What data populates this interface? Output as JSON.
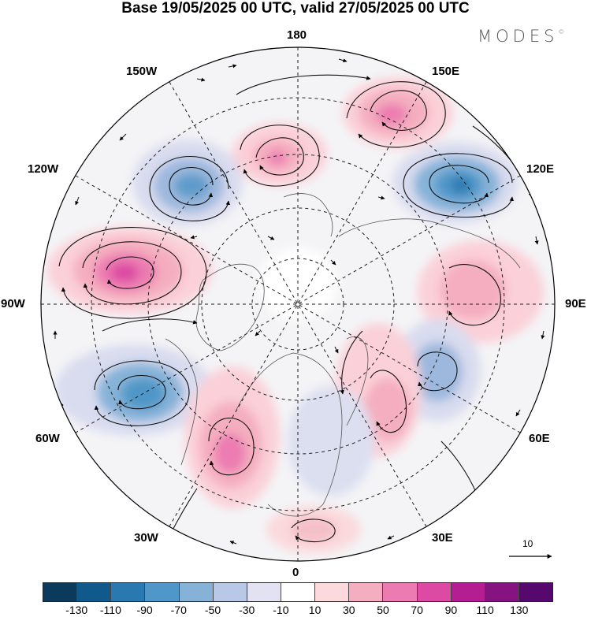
{
  "title": "Base 19/05/2025 00 UTC, valid 27/05/2025 00 UTC",
  "brand": "MODES",
  "brand_mark": "©",
  "longitude_labels": {
    "top": "180",
    "lon_150e": "150E",
    "lon_120e": "120E",
    "lon_90e": "90E",
    "lon_60e": "60E",
    "lon_30e": "30E",
    "bottom": "0",
    "lon_30w": "30W",
    "lon_60w": "60W",
    "lon_90w": "90W",
    "lon_120w": "120W",
    "lon_150w": "150W"
  },
  "reference_vector_label": "10",
  "colorbar": {
    "tick_labels": [
      "-130",
      "-110",
      "-90",
      "-70",
      "-50",
      "-30",
      "-10",
      "10",
      "30",
      "50",
      "70",
      "90",
      "110",
      "130"
    ],
    "colors": [
      "#0b3a5c",
      "#0f5a8a",
      "#2a78b0",
      "#4f97c8",
      "#86b2d8",
      "#b9c8e6",
      "#e2e2f2",
      "#ffffff",
      "#fbd9dc",
      "#f4aebf",
      "#ec7bb1",
      "#dc4aa3",
      "#b51d92",
      "#861480",
      "#56086d"
    ]
  },
  "field_anomalies": [
    {
      "label": "high-150E",
      "sign": "positive",
      "level": 70
    },
    {
      "label": "high-180",
      "sign": "positive",
      "level": 70
    },
    {
      "label": "low-140W",
      "sign": "negative",
      "level": -70
    },
    {
      "label": "low-125E",
      "sign": "negative",
      "level": -90
    },
    {
      "label": "high-100W",
      "sign": "positive",
      "level": 90
    },
    {
      "label": "high-90E",
      "sign": "positive",
      "level": 50
    },
    {
      "label": "low-70W",
      "sign": "negative",
      "level": -90
    },
    {
      "label": "low-60E",
      "sign": "negative",
      "level": -50
    },
    {
      "label": "high-40W",
      "sign": "positive",
      "level": 70
    },
    {
      "label": "high-45E",
      "sign": "positive",
      "level": 30
    },
    {
      "label": "high-0",
      "sign": "positive",
      "level": 30
    }
  ]
}
